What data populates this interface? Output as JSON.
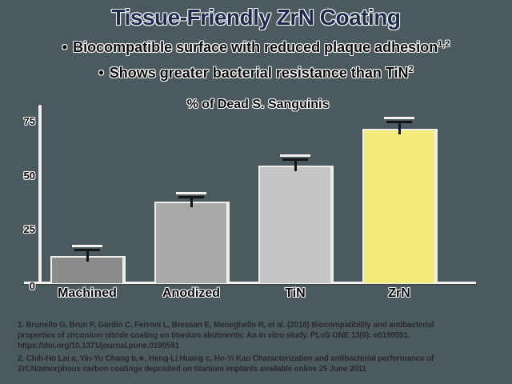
{
  "slide": {
    "title": "Tissue-Friendly ZrN Coating",
    "bullets": [
      {
        "marker": "•",
        "text": "Biocompatible surface with reduced plaque adhesion",
        "superscript": "1,2"
      },
      {
        "marker": "•",
        "text": "Shows greater bacterial resistance than TiN",
        "superscript": "2"
      }
    ]
  },
  "chart_data": {
    "type": "bar",
    "title": "% of Dead S. Sanguinis",
    "categories": [
      "Machined",
      "Anodized",
      "TiN",
      "ZrN"
    ],
    "values": [
      12,
      37,
      54,
      71
    ],
    "error_bars": [
      3,
      2.5,
      3,
      3.5
    ],
    "bar_colors": [
      "#8b8b8b",
      "#a9a9a9",
      "#c6c6c6",
      "#f2eb7a"
    ],
    "yticks": [
      0,
      25,
      50,
      75
    ],
    "ylim": [
      0,
      82
    ],
    "xlabel": "",
    "ylabel": "",
    "grid": false,
    "legend": false
  },
  "footnotes": {
    "lines": [
      "1. Brunello G, Brun P, Gardin C, Ferroni L, Bressan E, Meneghello R, et al. (2018) Biocompatibility and antibacterial",
      "properties of zirconium nitride coating on titanium abutments: An in vitro study. PLoS ONE 13(6): e0199591.",
      "https://doi.org/10.1371/journal.pone.0199591",
      "2. Chih-Ho Lai a, Yin-Yu Chang b,∗, Heng-Li Huang c, Ho-Yi Kao Characterization and antibacterial performance of",
      "ZrCN/amorphous carbon coatings deposited on titanium implants available online 25 June 2011"
    ]
  },
  "colors": {
    "background": "#4b5a5f",
    "title_text": "#1e2b4e",
    "body_text": "#0b0b0d",
    "axis": "#f1f0ec",
    "highlight_bar": "#f2eb7a",
    "error_bar": "#141414"
  }
}
